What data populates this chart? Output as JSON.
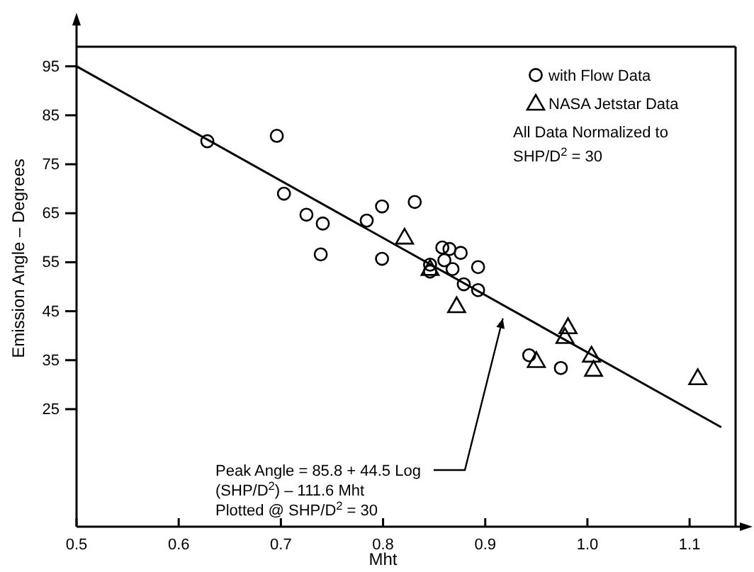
{
  "chart_data": {
    "type": "scatter",
    "xlabel": "Mht",
    "ylabel": "Emission Angle – Degrees",
    "xlim": [
      0.5,
      1.145
    ],
    "ylim": [
      1,
      99
    ],
    "xticks": [
      0.5,
      0.6,
      0.7,
      0.8,
      0.9,
      {
        "value": 1,
        "label": "1.0"
      },
      1.1
    ],
    "yticks": [
      25,
      35,
      45,
      55,
      65,
      75,
      85,
      95
    ],
    "grid": false,
    "legend": "top right",
    "series": [
      {
        "name": "with Flow Data",
        "color": "#000000",
        "marker": "circle",
        "x": [
          0.628,
          0.696,
          0.703,
          0.725,
          0.741,
          0.739,
          0.784,
          0.799,
          0.799,
          0.831,
          0.846,
          0.846,
          0.858,
          0.865,
          0.876,
          0.86,
          0.868,
          0.893,
          0.879,
          0.893,
          0.943,
          0.974
        ],
        "values": [
          79.7,
          80.8,
          69,
          64.7,
          62.9,
          56.6,
          63.5,
          66.4,
          55.7,
          67.3,
          54.5,
          53.1,
          58,
          57.7,
          56.9,
          55.4,
          53.6,
          54,
          50.5,
          49.3,
          36,
          33.4
        ]
      },
      {
        "name": "NASA Jetstar Data",
        "color": "#000000",
        "marker": "triangle",
        "x": [
          0.821,
          0.846,
          0.872,
          0.95,
          0.981,
          0.978,
          1.004,
          1.006,
          1.108
        ],
        "values": [
          60.1,
          53.7,
          46.1,
          34.9,
          41.8,
          39.8,
          36,
          33.1,
          31.4
        ]
      },
      {
        "type": "line",
        "color": "#000000",
        "marker": "none",
        "line_style": "solid",
        "x": [
          0.5,
          1.131
        ],
        "values": [
          95,
          21.3
        ]
      }
    ],
    "annotations": [
      {
        "text": "Peak Angle = 85.8 + 44.5 Log\n(SHP/D$^{2}$) – 111.6 Mht\nPlotted @ SHP/D$^{2}$ = 30",
        "x": 0.92,
        "y": 44.4
      },
      "All Data Normalized to\nSHP/D$^{2}$ = 30"
    ]
  }
}
